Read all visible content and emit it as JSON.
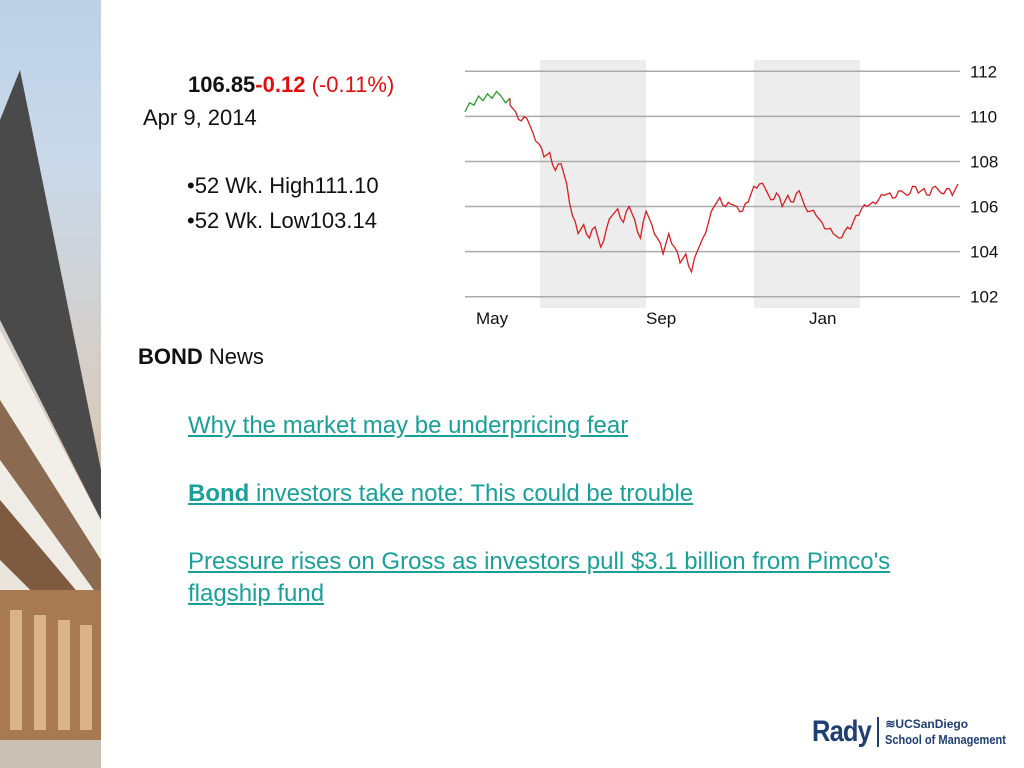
{
  "quote": {
    "price": "106.85",
    "change": "-0.12",
    "change_pct": "(-0.11%)",
    "date": "Apr 9, 2014",
    "high_label": "•52 Wk. High",
    "high_value": "111.10",
    "low_label": "•52 Wk. Low",
    "low_value": "103.14"
  },
  "chart_data": {
    "type": "line",
    "x_tick_labels": [
      "May",
      "Sep",
      "Jan"
    ],
    "y_ticks": [
      102,
      104,
      106,
      108,
      110,
      112
    ],
    "ylim": [
      101.5,
      112.5
    ],
    "grid": true,
    "colors": {
      "up": "#2a9a2a",
      "down": "#d42020",
      "grid": "#aaaaaa",
      "band": "#ededed"
    },
    "up_series": [
      110.2,
      110.6,
      110.5,
      110.9,
      110.7,
      111.0,
      110.8,
      111.1,
      110.9,
      110.6,
      110.8
    ],
    "down_series": [
      110.5,
      110.2,
      109.8,
      109.9,
      109.3,
      108.8,
      108.2,
      108.4,
      107.6,
      107.9,
      107.0,
      105.6,
      104.8,
      105.2,
      104.6,
      105.1,
      104.2,
      105.0,
      105.6,
      105.9,
      105.3,
      106.0,
      105.4,
      104.6,
      105.8,
      105.2,
      104.6,
      103.9,
      104.8,
      104.2,
      103.5,
      103.9,
      103.1,
      104.0,
      104.6,
      105.3,
      106.0,
      106.4,
      106.0,
      106.1,
      106.0,
      105.8,
      106.2,
      106.9,
      107.0,
      106.8,
      106.3,
      106.6,
      106.0,
      106.5,
      106.2,
      106.7,
      106.0,
      105.8,
      105.6,
      105.3,
      105.0,
      104.8,
      104.6,
      104.9,
      105.0,
      105.6,
      105.9,
      106.0,
      106.2,
      106.3,
      106.5,
      106.6,
      106.4,
      106.7,
      106.5,
      106.9,
      106.6,
      106.8,
      106.5,
      106.9,
      106.6,
      106.8,
      106.5,
      107.0
    ]
  },
  "news": {
    "heading_bold": "BOND",
    "heading_rest": " News",
    "items": [
      {
        "bold": "",
        "text": "Why the market may be underpricing fear"
      },
      {
        "bold": "Bond",
        "text": " investors take note: This could be trouble"
      },
      {
        "bold": "",
        "text": "Pressure rises on Gross as investors pull $3.1 billion from Pimco's flagship fund"
      }
    ]
  },
  "logo": {
    "rady": "Rady",
    "ucsd": "UCSanDiego",
    "school": "School of Management"
  }
}
